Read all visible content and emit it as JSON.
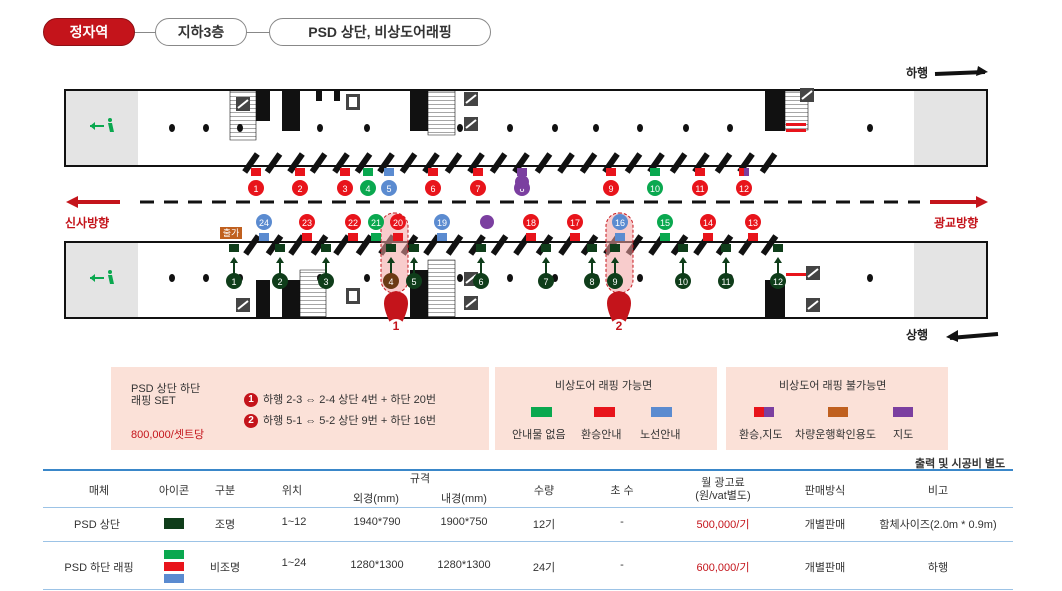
{
  "breadcrumb": {
    "station": "정자역",
    "floor": "지하3층",
    "item": "PSD 상단, 비상도어래핑"
  },
  "diagram": {
    "dir_down": "하행",
    "dir_up": "상행",
    "side_left": "신사방향",
    "side_right": "광교방향",
    "gate_label": "출가",
    "top_marks": [
      "1",
      "2",
      "3",
      "4",
      "5",
      "6",
      "7",
      "8",
      "9",
      "10",
      "11",
      "12"
    ],
    "mid_marks": [
      "24",
      "23",
      "22",
      "21",
      "20",
      "19",
      "18",
      "17",
      "16",
      "15",
      "14",
      "13"
    ],
    "psd_marks": [
      "1",
      "2",
      "3",
      "4",
      "5",
      "6",
      "7",
      "8",
      "9",
      "10",
      "11",
      "12"
    ],
    "highlights": [
      "1",
      "2"
    ],
    "colors": {
      "red": "#e8141b",
      "green": "#0aa84f",
      "blue": "#5b8bd0",
      "dark_green": "#0f3d1a",
      "purple": "#7b3fa0",
      "brown": "#c0601f"
    }
  },
  "legend": {
    "set_title_1": "PSD 상단 하단",
    "set_title_2": "래핑 SET",
    "set_price": "800,000/셋트당",
    "set_rows": [
      {
        "num": "1",
        "text": "하행 2-3 ⇔ 2-4   상단 4번 + 하단 20번"
      },
      {
        "num": "2",
        "text": "하행 5-1 ⇔ 5-2   상단 9번 + 하단 16번"
      }
    ],
    "possible_title": "비상도어 래핑 가능면",
    "possible_items": [
      "안내물 없음",
      "환승안내",
      "노선안내"
    ],
    "impossible_title": "비상도어 래핑 불가능면",
    "impossible_items": [
      "환승,지도",
      "차량운행확인용도",
      "지도"
    ]
  },
  "table": {
    "note": "출력 및 시공비 별도",
    "headers": {
      "media": "매체",
      "icon": "아이콘",
      "category": "구분",
      "location": "위치",
      "spec": "규격",
      "outer": "외경(mm)",
      "inner": "내경(mm)",
      "qty": "수량",
      "count": "초 수",
      "fee_1": "월 광고료",
      "fee_2": "(원/vat별도)",
      "sales": "판매방식",
      "remarks": "비고"
    },
    "rows": [
      {
        "media": "PSD 상단",
        "category": "조명",
        "location": "1~12",
        "outer": "1940*790",
        "inner": "1900*750",
        "qty": "12기",
        "count": "-",
        "fee": "500,000/기",
        "sales": "개별판매",
        "remarks": "함체사이즈(2.0m * 0.9m)"
      },
      {
        "media": "PSD 하단 래핑",
        "category": "비조명",
        "location": "1~24",
        "outer": "1280*1300",
        "inner": "1280*1300",
        "qty": "24기",
        "count": "-",
        "fee": "600,000/기",
        "sales": "개별판매",
        "remarks": "하행"
      }
    ]
  }
}
